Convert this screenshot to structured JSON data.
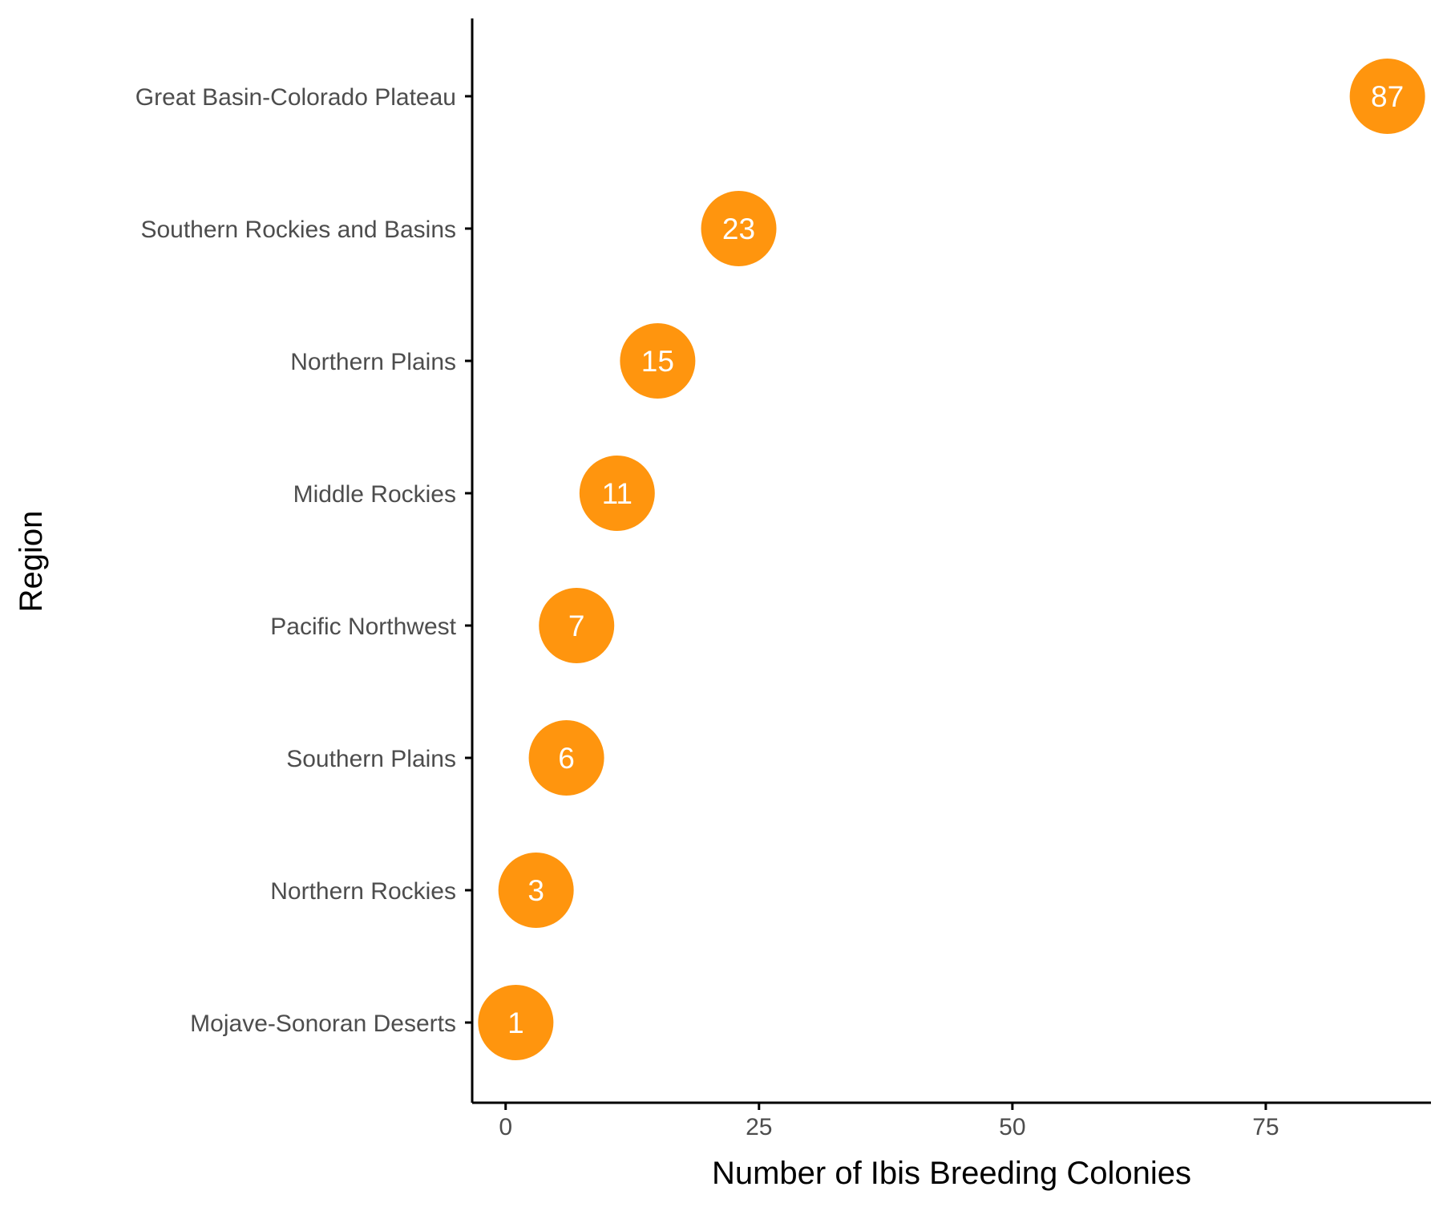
{
  "chart_data": {
    "type": "scatter",
    "title": "",
    "xlabel": "Number of Ibis Breeding Colonies",
    "ylabel": "Region",
    "categories": [
      "Great Basin-Colorado Plateau",
      "Southern Rockies and Basins",
      "Northern Plains",
      "Middle Rockies",
      "Pacific Northwest",
      "Southern Plains",
      "Northern Rockies",
      "Mojave-Sonoran Deserts"
    ],
    "values": [
      87,
      23,
      15,
      11,
      7,
      6,
      3,
      1
    ],
    "data_labels": [
      "87",
      "23",
      "15",
      "11",
      "7",
      "6",
      "3",
      "1"
    ],
    "xticks": [
      0,
      25,
      50,
      75
    ],
    "xtick_labels": [
      "0",
      "25",
      "50",
      "75"
    ],
    "xlim": [
      -3.3,
      91.3
    ],
    "grid": false,
    "legend": "none",
    "point_color": "#FF950E",
    "label_color": "#ffffff"
  }
}
